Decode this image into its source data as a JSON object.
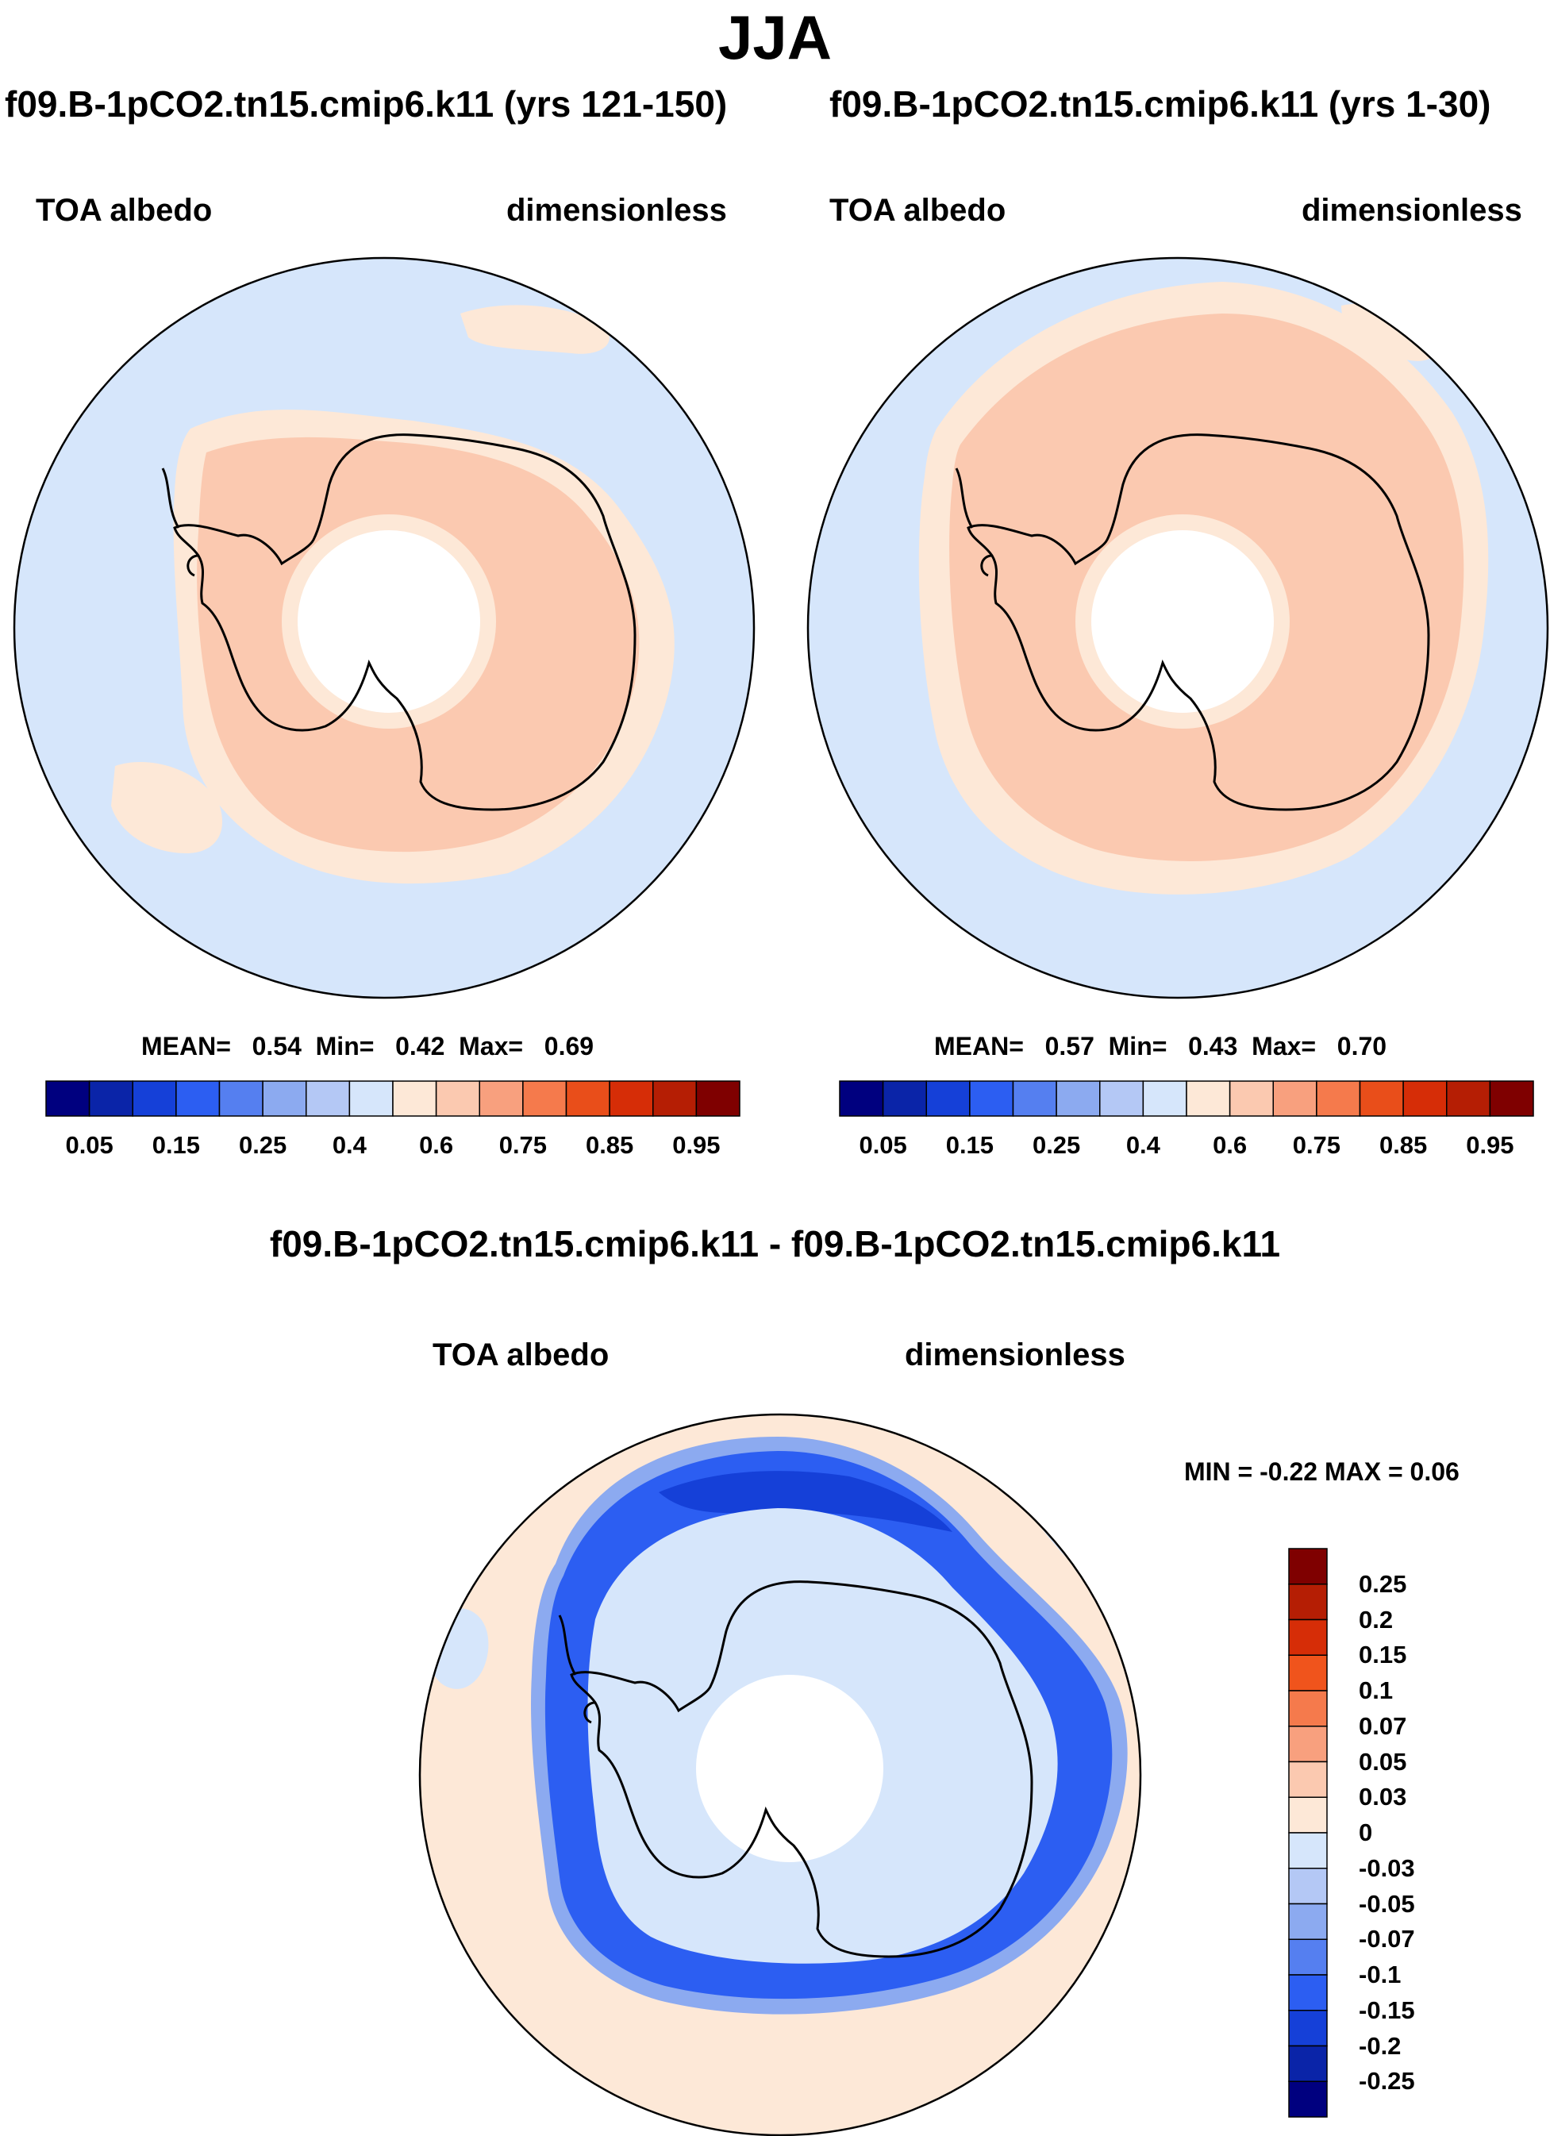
{
  "title": "JJA",
  "panels": [
    {
      "case": "f09.B-1pCO2.tn15.cmip6.k11 (yrs 121-150)",
      "variable": "TOA albedo",
      "units": "dimensionless",
      "stats": {
        "mean_label": "MEAN=",
        "mean": "0.54",
        "min_label": "Min=",
        "min": "0.42",
        "max_label": "Max=",
        "max": "0.69"
      }
    },
    {
      "case": "f09.B-1pCO2.tn15.cmip6.k11 (yrs 1-30)",
      "variable": "TOA albedo",
      "units": "dimensionless",
      "stats": {
        "mean_label": "MEAN=",
        "mean": "0.57",
        "min_label": "Min=",
        "min": "0.43",
        "max_label": "Max=",
        "max": "0.70"
      }
    }
  ],
  "diff": {
    "case": "f09.B-1pCO2.tn15.cmip6.k11 - f09.B-1pCO2.tn15.cmip6.k11",
    "variable": "TOA albedo",
    "units": "dimensionless",
    "minmax": "MIN =  -0.22 MAX =   0.06"
  },
  "colorbar_abs": {
    "colors": [
      "#00007f",
      "#0a24a8",
      "#1540d8",
      "#2c5ef2",
      "#557ff0",
      "#8caaf0",
      "#b4c8f5",
      "#d6e6fb",
      "#fde8d7",
      "#fbc9b0",
      "#f8a07e",
      "#f57a4c",
      "#e94e1a",
      "#d62d07",
      "#b51e04",
      "#7f0000"
    ],
    "ticks": [
      "0.05",
      "0.15",
      "0.25",
      "0.4",
      "0.6",
      "0.75",
      "0.85",
      "0.95"
    ]
  },
  "colorbar_diff": {
    "colors": [
      "#7f0000",
      "#b51e04",
      "#d62d07",
      "#f0541c",
      "#f57a4c",
      "#f8a07e",
      "#fbc9b0",
      "#fde8d7",
      "#d6e6fb",
      "#b4c8f5",
      "#8caaf0",
      "#557ff0",
      "#2c5ef2",
      "#1540d8",
      "#0a24a8",
      "#00007f"
    ],
    "ticks": [
      "0.25",
      "0.2",
      "0.15",
      "0.1",
      "0.07",
      "0.05",
      "0.03",
      "0",
      "-0.03",
      "-0.05",
      "-0.07",
      "-0.1",
      "-0.15",
      "-0.2",
      "-0.25"
    ]
  },
  "map_colors": {
    "ocean_light_blue": "#d6e6fb",
    "pale_peach": "#fde8d7",
    "salmon": "#fbc9b0",
    "diff_blue_mid": "#2c5ef2",
    "diff_blue_dark": "#1540d8"
  }
}
